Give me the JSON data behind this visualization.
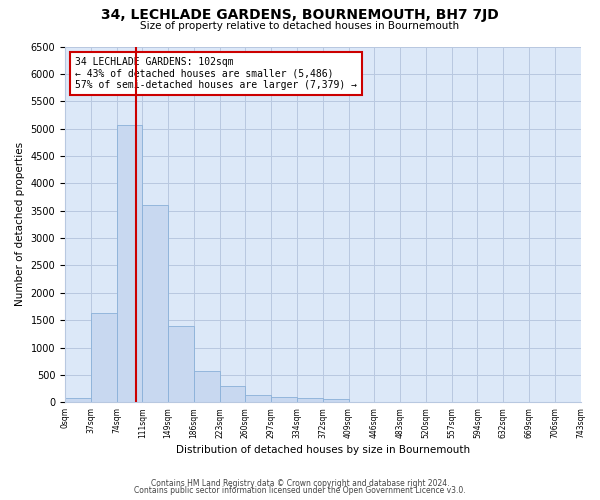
{
  "title": "34, LECHLADE GARDENS, BOURNEMOUTH, BH7 7JD",
  "subtitle": "Size of property relative to detached houses in Bournemouth",
  "xlabel": "Distribution of detached houses by size in Bournemouth",
  "ylabel": "Number of detached properties",
  "bar_values": [
    75,
    1625,
    5075,
    3600,
    1400,
    580,
    290,
    140,
    100,
    75,
    55,
    0,
    0,
    0,
    0,
    0,
    0,
    0,
    0,
    0
  ],
  "bin_labels": [
    "0sqm",
    "37sqm",
    "74sqm",
    "111sqm",
    "149sqm",
    "186sqm",
    "223sqm",
    "260sqm",
    "297sqm",
    "334sqm",
    "372sqm",
    "409sqm",
    "446sqm",
    "483sqm",
    "520sqm",
    "557sqm",
    "594sqm",
    "632sqm",
    "669sqm",
    "706sqm",
    "743sqm"
  ],
  "bar_color": "#c8d8f0",
  "bar_edge_color": "#8ab0d8",
  "vline_x": 2.75,
  "vline_color": "#cc0000",
  "annotation_text": "34 LECHLADE GARDENS: 102sqm\n← 43% of detached houses are smaller (5,486)\n57% of semi-detached houses are larger (7,379) →",
  "annotation_box_color": "#ffffff",
  "annotation_box_edge": "#cc0000",
  "ylim": [
    0,
    6500
  ],
  "yticks": [
    0,
    500,
    1000,
    1500,
    2000,
    2500,
    3000,
    3500,
    4000,
    4500,
    5000,
    5500,
    6000,
    6500
  ],
  "footer_line1": "Contains HM Land Registry data © Crown copyright and database right 2024.",
  "footer_line2": "Contains public sector information licensed under the Open Government Licence v3.0.",
  "fig_bg_color": "#ffffff",
  "plot_bg_color": "#dce8f8"
}
